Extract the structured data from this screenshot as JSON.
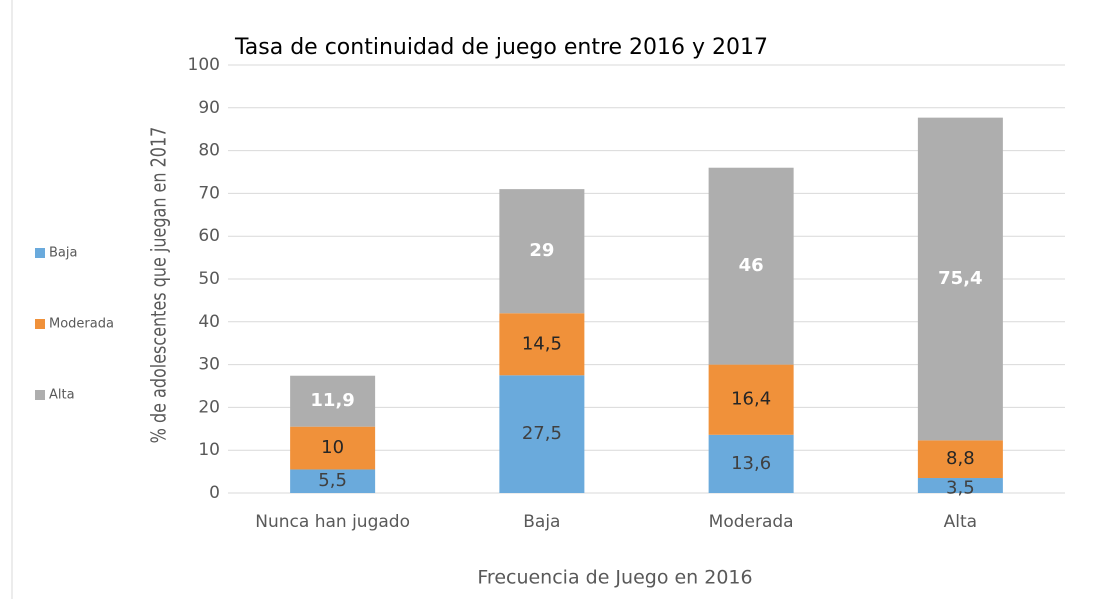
{
  "chart_data": {
    "type": "stacked_bar",
    "title": "Tasa de continuidad de juego entre 2016 y 2017",
    "x_label": "Frecuencia de Juego en 2016",
    "y_label": "% de adolescentes que juegan en 2017",
    "categories": [
      "Nunca han jugado",
      "Baja",
      "Moderada",
      "Alta"
    ],
    "series": [
      {
        "name": "Baja",
        "color": "#6aaadc",
        "label_color": "#404040",
        "values": [
          5.5,
          27.5,
          13.6,
          3.5
        ],
        "value_labels": [
          "5,5",
          "27,5",
          "13,6",
          "3,5"
        ]
      },
      {
        "name": "Moderada",
        "color": "#f0913a",
        "label_color": "#262626",
        "values": [
          10,
          14.5,
          16.4,
          8.8
        ],
        "value_labels": [
          "10",
          "14,5",
          "16,4",
          "8,8"
        ]
      },
      {
        "name": "Alta",
        "color": "#aeaeae",
        "label_color": "#ffffff",
        "values": [
          11.9,
          29,
          46,
          75.4
        ],
        "value_labels": [
          "11,9",
          "29",
          "46",
          "75,4"
        ]
      }
    ],
    "ylim": [
      0,
      100
    ],
    "yticks": [
      0,
      10,
      20,
      30,
      40,
      50,
      60,
      70,
      80,
      90,
      100
    ],
    "grid": true,
    "legend": "left"
  }
}
